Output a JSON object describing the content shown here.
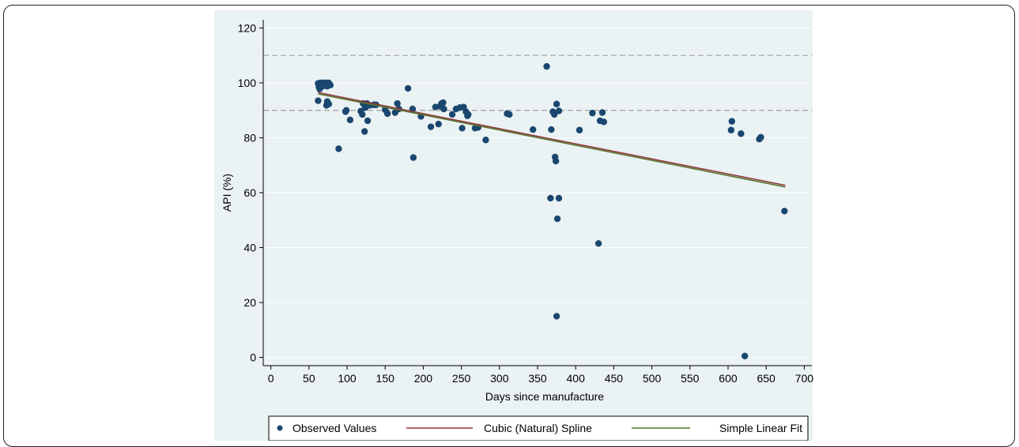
{
  "chart_data": {
    "type": "scatter",
    "xlabel": "Days since manufacture",
    "ylabel": "API (%)",
    "xlim": [
      -10,
      710
    ],
    "ylim": [
      -3,
      123
    ],
    "x_ticks": [
      0,
      50,
      100,
      150,
      200,
      250,
      300,
      350,
      400,
      450,
      500,
      550,
      600,
      650,
      700
    ],
    "y_ticks": [
      0,
      20,
      40,
      60,
      80,
      100,
      120
    ],
    "grid": "horizontal",
    "reference_lines": [
      90,
      110
    ],
    "legend_position": "bottom",
    "colors": {
      "plot_background": "#eaf2f3",
      "points": "#1a476f",
      "spline": "#90353b",
      "linear": "#55752f",
      "reference": "#a0a0a0",
      "grid": "#ffffff"
    },
    "series": [
      {
        "name": "Observed Values",
        "kind": "scatter",
        "points": [
          [
            62,
            99.8
          ],
          [
            63,
            98.5
          ],
          [
            64,
            97.8
          ],
          [
            65,
            100
          ],
          [
            66,
            99.5
          ],
          [
            67,
            100
          ],
          [
            68,
            98.8
          ],
          [
            69,
            100
          ],
          [
            70,
            99.2
          ],
          [
            71,
            100
          ],
          [
            72,
            99
          ],
          [
            73,
            100
          ],
          [
            74,
            98.8
          ],
          [
            75,
            99.5
          ],
          [
            76,
            100
          ],
          [
            78,
            99.2
          ],
          [
            62,
            93.5
          ],
          [
            73,
            91.8
          ],
          [
            74,
            93.2
          ],
          [
            76,
            92.3
          ],
          [
            89,
            76
          ],
          [
            98,
            89.5
          ],
          [
            99,
            90
          ],
          [
            104,
            86.5
          ],
          [
            118,
            89.7
          ],
          [
            120,
            88.5
          ],
          [
            121,
            92.5
          ],
          [
            123,
            82.3
          ],
          [
            124,
            91
          ],
          [
            126,
            92.5
          ],
          [
            127,
            86.2
          ],
          [
            130,
            91.8
          ],
          [
            135,
            92
          ],
          [
            138,
            92
          ],
          [
            150,
            90.2
          ],
          [
            153,
            88.8
          ],
          [
            163,
            89.2
          ],
          [
            166,
            92.5
          ],
          [
            168,
            90.5
          ],
          [
            180,
            98
          ],
          [
            186,
            90.5
          ],
          [
            187,
            72.8
          ],
          [
            197,
            87.8
          ],
          [
            210,
            84
          ],
          [
            216,
            91.2
          ],
          [
            220,
            85
          ],
          [
            222,
            91.5
          ],
          [
            224,
            92.5
          ],
          [
            226,
            92.8
          ],
          [
            227,
            90.5
          ],
          [
            238,
            88.5
          ],
          [
            243,
            90.5
          ],
          [
            248,
            91
          ],
          [
            251,
            83.5
          ],
          [
            253,
            91.2
          ],
          [
            256,
            89.5
          ],
          [
            258,
            88
          ],
          [
            259,
            88.5
          ],
          [
            268,
            83.5
          ],
          [
            272,
            83.8
          ],
          [
            282,
            79.2
          ],
          [
            310,
            88.8
          ],
          [
            313,
            88.5
          ],
          [
            344,
            83
          ],
          [
            362,
            106
          ],
          [
            367,
            58
          ],
          [
            368,
            83
          ],
          [
            370,
            89.5
          ],
          [
            372,
            88.5
          ],
          [
            373,
            73
          ],
          [
            374,
            71.5
          ],
          [
            375,
            92.3
          ],
          [
            375,
            15
          ],
          [
            376,
            50.5
          ],
          [
            378,
            89.8
          ],
          [
            378,
            58
          ],
          [
            405,
            82.8
          ],
          [
            422,
            89
          ],
          [
            430,
            41.5
          ],
          [
            432,
            86.2
          ],
          [
            435,
            89.2
          ],
          [
            437,
            85.8
          ],
          [
            604,
            82.8
          ],
          [
            605,
            86
          ],
          [
            617,
            81.5
          ],
          [
            622,
            0.5
          ],
          [
            641,
            79.5
          ],
          [
            643,
            80.2
          ],
          [
            674,
            53.3
          ]
        ]
      },
      {
        "name": "Cubic (Natural) Spline",
        "kind": "line",
        "points": [
          [
            62,
            96.5
          ],
          [
            200,
            88.8
          ],
          [
            400,
            77.8
          ],
          [
            675,
            62.7
          ]
        ]
      },
      {
        "name": "Simple Linear Fit",
        "kind": "line",
        "points": [
          [
            62,
            96.0
          ],
          [
            675,
            62.1
          ]
        ]
      }
    ]
  }
}
